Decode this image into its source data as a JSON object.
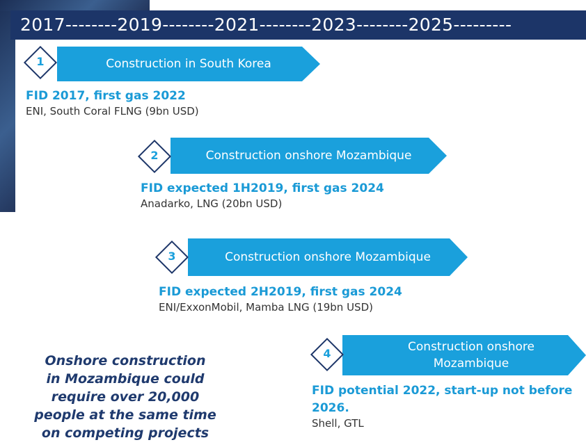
{
  "header": {
    "timeline": "2017--------2019--------2021--------2023--------2025---------"
  },
  "items": [
    {
      "number": "1",
      "banner": "Construction in South Korea",
      "title": "FID 2017, first gas 2022",
      "subtitle": "ENI, South Coral FLNG (9bn USD)"
    },
    {
      "number": "2",
      "banner": "Construction onshore Mozambique",
      "title": "FID expected 1H2019, first gas 2024",
      "subtitle": "Anadarko, LNG (20bn USD)"
    },
    {
      "number": "3",
      "banner": "Construction onshore Mozambique",
      "title": "FID expected 2H2019, first gas 2024",
      "subtitle": "ENI/ExxonMobil, Mamba LNG (19bn USD)"
    },
    {
      "number": "4",
      "banner": "Construction onshore Mozambique",
      "title": "FID potential 2022, start-up not before 2026.",
      "subtitle": "Shell, GTL"
    }
  ],
  "note": {
    "lines": [
      "Onshore construction",
      "in Mozambique could",
      "require over 20,000",
      "people at the same time",
      "on competing projects"
    ]
  }
}
